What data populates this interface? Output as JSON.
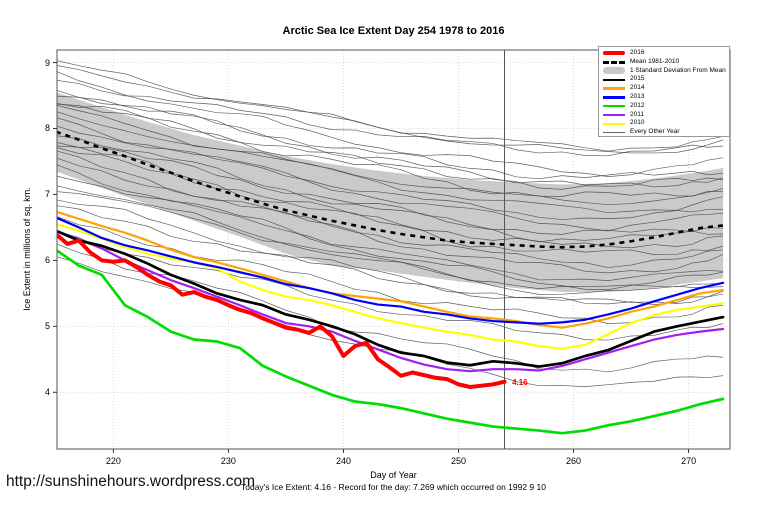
{
  "page": {
    "footer_url": "http://sunshinehours.wordpress.com",
    "footer_note": "Today's Ice Extent: 4.16  - Record for the day: 7.269 which occurred on 1992 9 10"
  },
  "chart_data": {
    "type": "line",
    "title": "Arctic Sea Ice Extent Day 254 1978 to 2016",
    "xlabel": "Day of Year",
    "ylabel": "Ice Extent in millions of sq. km.",
    "xlim": [
      215.1,
      273.6
    ],
    "ylim": [
      3.14,
      9.19
    ],
    "x_ticks": [
      220,
      230,
      240,
      250,
      260,
      270
    ],
    "y_ticks": [
      4,
      5,
      6,
      7,
      8,
      9
    ],
    "grid": true,
    "grid_color": "#d9d9d9",
    "vline_day": 254,
    "vline_color": "#555555",
    "endpoint_label": {
      "text": "4.16",
      "day": 254.4,
      "value": 4.16,
      "color": "#ff0000"
    },
    "band": {
      "name": "1 Standard Deviation From Mean",
      "color": "#cacaca",
      "days": [
        215,
        219,
        223,
        227,
        231,
        235,
        239,
        243,
        247,
        251,
        255,
        259,
        263,
        267,
        271,
        273
      ],
      "top": [
        8.55,
        8.32,
        8.1,
        7.9,
        7.74,
        7.58,
        7.46,
        7.36,
        7.28,
        7.22,
        7.18,
        7.15,
        7.17,
        7.24,
        7.34,
        7.4
      ],
      "bottom": [
        7.35,
        7.1,
        6.85,
        6.6,
        6.36,
        6.1,
        5.92,
        5.85,
        5.75,
        5.66,
        5.58,
        5.52,
        5.52,
        5.58,
        5.68,
        5.73
      ]
    },
    "mean": {
      "name": "Mean 1981-2010",
      "color": "#000000",
      "days": [
        215,
        217,
        219,
        221,
        223,
        225,
        227,
        229,
        231,
        233,
        235,
        237,
        239,
        241,
        243,
        245,
        247,
        249,
        251,
        253,
        255,
        257,
        259,
        261,
        263,
        265,
        267,
        269,
        271,
        273
      ],
      "values": [
        7.95,
        7.83,
        7.7,
        7.58,
        7.45,
        7.33,
        7.2,
        7.08,
        6.97,
        6.86,
        6.76,
        6.68,
        6.6,
        6.53,
        6.46,
        6.4,
        6.35,
        6.3,
        6.27,
        6.25,
        6.23,
        6.21,
        6.2,
        6.21,
        6.24,
        6.29,
        6.35,
        6.42,
        6.49,
        6.53
      ]
    },
    "series": [
      {
        "name": "2010",
        "color": "#ffff00",
        "width": 2.2,
        "days": [
          215,
          217,
          219,
          221,
          223,
          225,
          227,
          229,
          231,
          233,
          235,
          237,
          239,
          241,
          243,
          245,
          247,
          249,
          251,
          253,
          255,
          257,
          259,
          261,
          263,
          265,
          267,
          269,
          271,
          273
        ],
        "values": [
          6.55,
          6.45,
          6.33,
          6.2,
          6.1,
          6.03,
          5.97,
          5.88,
          5.68,
          5.55,
          5.45,
          5.4,
          5.32,
          5.22,
          5.12,
          5.05,
          4.98,
          4.92,
          4.87,
          4.8,
          4.77,
          4.7,
          4.66,
          4.72,
          4.88,
          5.05,
          5.17,
          5.25,
          5.3,
          5.35
        ]
      },
      {
        "name": "2014",
        "color": "#ffa500",
        "width": 2.2,
        "days": [
          215,
          217,
          219,
          221,
          223,
          225,
          227,
          229,
          231,
          233,
          235,
          237,
          239,
          241,
          243,
          245,
          247,
          249,
          251,
          253,
          255,
          257,
          259,
          261,
          263,
          265,
          267,
          269,
          271,
          273
        ],
        "values": [
          6.74,
          6.63,
          6.52,
          6.42,
          6.3,
          6.16,
          6.05,
          5.97,
          5.88,
          5.78,
          5.68,
          5.58,
          5.5,
          5.46,
          5.42,
          5.38,
          5.3,
          5.22,
          5.15,
          5.12,
          5.08,
          5.02,
          4.98,
          5.04,
          5.12,
          5.22,
          5.3,
          5.4,
          5.5,
          5.55
        ]
      },
      {
        "name": "2013",
        "color": "#0000ff",
        "width": 2.2,
        "days": [
          215,
          217,
          219,
          221,
          223,
          225,
          227,
          229,
          231,
          233,
          235,
          237,
          239,
          241,
          243,
          245,
          247,
          249,
          251,
          253,
          255,
          257,
          259,
          261,
          263,
          265,
          267,
          269,
          271,
          273
        ],
        "values": [
          6.65,
          6.5,
          6.34,
          6.23,
          6.15,
          6.06,
          5.97,
          5.9,
          5.82,
          5.74,
          5.64,
          5.58,
          5.5,
          5.4,
          5.33,
          5.3,
          5.22,
          5.18,
          5.12,
          5.08,
          5.06,
          5.04,
          5.06,
          5.1,
          5.18,
          5.27,
          5.38,
          5.48,
          5.58,
          5.66
        ]
      },
      {
        "name": "2011",
        "color": "#a020f0",
        "width": 2.2,
        "days": [
          215,
          217,
          219,
          221,
          223,
          225,
          227,
          229,
          231,
          233,
          235,
          237,
          239,
          241,
          243,
          245,
          247,
          249,
          251,
          253,
          255,
          257,
          259,
          261,
          263,
          265,
          267,
          269,
          271,
          273
        ],
        "values": [
          6.45,
          6.32,
          6.18,
          6.0,
          5.85,
          5.7,
          5.58,
          5.45,
          5.32,
          5.18,
          5.05,
          5.0,
          4.92,
          4.78,
          4.65,
          4.52,
          4.42,
          4.35,
          4.32,
          4.35,
          4.35,
          4.33,
          4.4,
          4.5,
          4.6,
          4.7,
          4.8,
          4.87,
          4.92,
          4.96
        ]
      },
      {
        "name": "2015",
        "color": "#000000",
        "width": 2.7,
        "days": [
          215,
          217,
          219,
          221,
          223,
          225,
          227,
          229,
          231,
          233,
          235,
          237,
          239,
          241,
          243,
          245,
          247,
          249,
          251,
          253,
          255,
          257,
          259,
          261,
          263,
          265,
          267,
          269,
          271,
          273
        ],
        "values": [
          6.45,
          6.3,
          6.22,
          6.1,
          5.95,
          5.78,
          5.65,
          5.5,
          5.4,
          5.32,
          5.18,
          5.1,
          5.0,
          4.88,
          4.72,
          4.6,
          4.55,
          4.45,
          4.41,
          4.47,
          4.44,
          4.39,
          4.44,
          4.55,
          4.64,
          4.78,
          4.92,
          5.0,
          5.07,
          5.14
        ]
      },
      {
        "name": "2012",
        "color": "#00dd00",
        "width": 2.7,
        "days": [
          215,
          217,
          219,
          221,
          223,
          225,
          227,
          229,
          231,
          233,
          235,
          237,
          239,
          241,
          243,
          245,
          247,
          249,
          251,
          253,
          255,
          257,
          259,
          261,
          263,
          265,
          267,
          269,
          271,
          273
        ],
        "values": [
          6.16,
          5.92,
          5.78,
          5.32,
          5.14,
          4.92,
          4.8,
          4.77,
          4.67,
          4.4,
          4.24,
          4.1,
          3.96,
          3.86,
          3.82,
          3.76,
          3.68,
          3.6,
          3.54,
          3.48,
          3.45,
          3.42,
          3.38,
          3.42,
          3.5,
          3.56,
          3.64,
          3.72,
          3.82,
          3.9
        ]
      },
      {
        "name": "2016",
        "color": "#ff0000",
        "width": 4,
        "days": [
          215,
          216,
          217,
          218,
          219,
          220,
          221,
          222,
          223,
          224,
          225,
          226,
          227,
          228,
          229,
          230,
          231,
          232,
          233,
          234,
          235,
          236,
          237,
          238,
          239,
          240,
          241,
          242,
          243,
          244,
          245,
          246,
          247,
          248,
          249,
          250,
          251,
          252,
          253,
          254
        ],
        "values": [
          6.4,
          6.25,
          6.3,
          6.12,
          6.0,
          5.98,
          6.0,
          5.9,
          5.78,
          5.68,
          5.62,
          5.48,
          5.52,
          5.45,
          5.4,
          5.32,
          5.25,
          5.2,
          5.12,
          5.05,
          4.98,
          4.95,
          4.9,
          5.0,
          4.85,
          4.55,
          4.7,
          4.75,
          4.5,
          4.38,
          4.25,
          4.3,
          4.26,
          4.22,
          4.2,
          4.12,
          4.08,
          4.1,
          4.12,
          4.16
        ]
      }
    ],
    "every_other_year": {
      "name": "Every Other Year",
      "color": "#444444",
      "days": [
        215,
        221,
        227,
        233,
        239,
        245,
        251,
        257,
        263,
        269,
        273
      ],
      "shape": [
        0,
        0.16,
        0.32,
        0.48,
        0.63,
        0.76,
        0.88,
        0.97,
        1.0,
        0.96,
        0.9
      ],
      "lines": [
        {
          "start": 9.0,
          "drop": 1.35,
          "amp": 0.07,
          "phase": 0.5
        },
        {
          "start": 8.9,
          "drop": 1.2,
          "amp": 0.06,
          "phase": 1.3
        },
        {
          "start": 8.8,
          "drop": 1.45,
          "amp": 0.08,
          "phase": 2.1
        },
        {
          "start": 8.72,
          "drop": 1.1,
          "amp": 0.05,
          "phase": 2.9
        },
        {
          "start": 8.62,
          "drop": 1.5,
          "amp": 0.07,
          "phase": 3.7
        },
        {
          "start": 8.55,
          "drop": 1.3,
          "amp": 0.06,
          "phase": 4.5
        },
        {
          "start": 8.45,
          "drop": 1.5,
          "amp": 0.08,
          "phase": 5.3
        },
        {
          "start": 8.38,
          "drop": 1.25,
          "amp": 0.05,
          "phase": 6.1
        },
        {
          "start": 8.3,
          "drop": 1.55,
          "amp": 0.07,
          "phase": 0.9
        },
        {
          "start": 8.2,
          "drop": 1.3,
          "amp": 0.06,
          "phase": 1.7
        },
        {
          "start": 8.12,
          "drop": 1.6,
          "amp": 0.08,
          "phase": 2.5
        },
        {
          "start": 8.05,
          "drop": 1.4,
          "amp": 0.05,
          "phase": 3.3
        },
        {
          "start": 7.95,
          "drop": 1.65,
          "amp": 0.07,
          "phase": 4.1
        },
        {
          "start": 7.85,
          "drop": 1.45,
          "amp": 0.06,
          "phase": 4.9
        },
        {
          "start": 7.78,
          "drop": 1.7,
          "amp": 0.08,
          "phase": 5.7
        },
        {
          "start": 7.7,
          "drop": 1.5,
          "amp": 0.05,
          "phase": 0.3
        },
        {
          "start": 7.6,
          "drop": 1.75,
          "amp": 0.07,
          "phase": 1.1
        },
        {
          "start": 7.5,
          "drop": 1.55,
          "amp": 0.06,
          "phase": 1.9
        },
        {
          "start": 7.42,
          "drop": 1.8,
          "amp": 0.08,
          "phase": 2.7
        },
        {
          "start": 7.3,
          "drop": 1.6,
          "amp": 0.05,
          "phase": 3.5
        },
        {
          "start": 7.2,
          "drop": 1.7,
          "amp": 0.07,
          "phase": 4.3
        },
        {
          "start": 7.1,
          "drop": 1.55,
          "amp": 0.06,
          "phase": 5.1
        },
        {
          "start": 6.95,
          "drop": 1.6,
          "amp": 0.08,
          "phase": 5.9
        },
        {
          "start": 6.8,
          "drop": 1.45,
          "amp": 0.05,
          "phase": 0.7
        },
        {
          "start": 6.6,
          "drop": 1.5,
          "amp": 0.07,
          "phase": 1.5
        },
        {
          "start": 6.4,
          "drop": 1.55,
          "amp": 0.06,
          "phase": 2.3
        },
        {
          "start": 6.25,
          "drop": 1.9,
          "amp": 0.08,
          "phase": 3.1
        },
        {
          "start": 6.1,
          "drop": 2.0,
          "amp": 0.06,
          "phase": 3.9
        }
      ]
    },
    "legend": [
      {
        "label": "2016",
        "color": "#ff0000",
        "style": "thick"
      },
      {
        "label": "Mean 1981-2010",
        "color": "#000000",
        "style": "dashed"
      },
      {
        "label": "1 Standard Deviation From Mean",
        "color": "#c8c8c8",
        "style": "band"
      },
      {
        "label": "2015",
        "color": "#000000",
        "style": "line"
      },
      {
        "label": "2014",
        "color": "#ffa500",
        "style": "line"
      },
      {
        "label": "2013",
        "color": "#0000ff",
        "style": "line"
      },
      {
        "label": "2012",
        "color": "#00dd00",
        "style": "line"
      },
      {
        "label": "2011",
        "color": "#a020f0",
        "style": "line"
      },
      {
        "label": "2010",
        "color": "#ffff00",
        "style": "line"
      },
      {
        "label": "Every Other Year",
        "color": "#666666",
        "style": "thin"
      }
    ],
    "legend_position": "top-right"
  }
}
